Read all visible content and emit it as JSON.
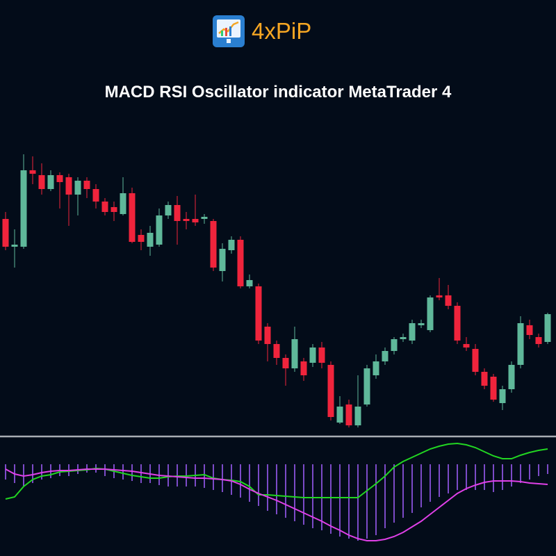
{
  "logo": "4xPiP",
  "title": "MACD RSI Oscillator indicator MetaTrader 4",
  "chart_data": [
    {
      "type": "candlestick",
      "ylim": [
        0,
        410
      ],
      "up_color": "#5fb89a",
      "down_color": "#f0243c",
      "open": [
        305,
        265,
        265,
        375,
        368,
        348,
        368,
        365,
        340,
        360,
        348,
        330,
        322,
        312,
        342,
        282,
        265,
        268,
        310,
        325,
        305,
        305,
        305,
        302,
        230,
        260,
        275,
        208,
        208,
        150,
        125,
        105,
        90,
        100,
        98,
        120,
        95,
        12,
        38,
        8,
        38,
        80,
        100,
        115,
        132,
        130,
        152,
        145,
        195,
        195,
        180,
        125,
        118,
        85,
        78,
        40,
        60,
        95,
        152,
        135,
        128
      ],
      "high": [
        315,
        290,
        398,
        395,
        385,
        375,
        372,
        370,
        365,
        365,
        355,
        335,
        330,
        365,
        350,
        290,
        295,
        320,
        330,
        338,
        315,
        340,
        312,
        305,
        270,
        280,
        280,
        225,
        212,
        155,
        130,
        110,
        150,
        105,
        125,
        128,
        100,
        50,
        45,
        80,
        95,
        110,
        120,
        135,
        140,
        160,
        160,
        195,
        220,
        210,
        185,
        135,
        125,
        90,
        82,
        65,
        100,
        165,
        160,
        140,
        170
      ],
      "low": [
        260,
        235,
        262,
        355,
        340,
        345,
        320,
        295,
        310,
        335,
        320,
        310,
        302,
        310,
        270,
        260,
        252,
        265,
        305,
        268,
        290,
        295,
        298,
        230,
        215,
        255,
        205,
        205,
        125,
        100,
        95,
        65,
        85,
        72,
        92,
        90,
        15,
        10,
        5,
        5,
        35,
        75,
        95,
        110,
        128,
        125,
        148,
        142,
        188,
        175,
        125,
        115,
        80,
        60,
        42,
        30,
        55,
        90,
        132,
        120,
        125
      ],
      "close": [
        265,
        268,
        375,
        370,
        348,
        368,
        358,
        340,
        360,
        348,
        330,
        315,
        315,
        342,
        272,
        272,
        285,
        310,
        325,
        302,
        302,
        300,
        308,
        235,
        262,
        275,
        208,
        217,
        130,
        125,
        105,
        90,
        132,
        80,
        120,
        98,
        20,
        35,
        8,
        35,
        90,
        100,
        115,
        132,
        135,
        155,
        155,
        192,
        192,
        180,
        130,
        120,
        85,
        65,
        45,
        60,
        95,
        155,
        138,
        125,
        168
      ]
    },
    {
      "type": "indicator",
      "ylim": [
        -132,
        28
      ],
      "histogram": {
        "color": "#9b5cf5",
        "values": [
          -22,
          -27,
          -32,
          -27,
          -22,
          -20,
          -17,
          -17,
          -14,
          -12,
          -12,
          -17,
          -20,
          -22,
          -24,
          -27,
          -27,
          -30,
          -32,
          -32,
          -32,
          -32,
          -34,
          -37,
          -40,
          -44,
          -48,
          -54,
          -60,
          -67,
          -72,
          -77,
          -82,
          -87,
          -92,
          -95,
          -100,
          -104,
          -107,
          -110,
          -107,
          -102,
          -92,
          -84,
          -77,
          -70,
          -62,
          -54,
          -47,
          -42,
          -37,
          -37,
          -37,
          -37,
          -40,
          -37,
          -32,
          -27,
          -22,
          -17,
          -14
        ]
      },
      "series": [
        {
          "color": "#22d622",
          "values": [
            -50,
            -47,
            -32,
            -22,
            -17,
            -15,
            -11,
            -10,
            -9,
            -8,
            -6,
            -7,
            -10,
            -13,
            -16,
            -18,
            -20,
            -20,
            -18,
            -17,
            -17,
            -16,
            -15,
            -20,
            -22,
            -23,
            -25,
            -32,
            -44,
            -44,
            -45,
            -46,
            -47,
            -48,
            -48,
            -48,
            -48,
            -48,
            -48,
            -48,
            -38,
            -28,
            -17,
            -4,
            4,
            10,
            16,
            22,
            26,
            29,
            30,
            28,
            24,
            18,
            12,
            8,
            8,
            13,
            17,
            20,
            22
          ]
        },
        {
          "color": "#e040e8",
          "values": [
            -7,
            -14,
            -17,
            -15,
            -12,
            -10,
            -9,
            -9,
            -8,
            -7,
            -7,
            -7,
            -8,
            -9,
            -10,
            -12,
            -14,
            -16,
            -17,
            -18,
            -19,
            -20,
            -20,
            -21,
            -22,
            -24,
            -29,
            -36,
            -42,
            -47,
            -52,
            -58,
            -64,
            -70,
            -76,
            -82,
            -89,
            -95,
            -102,
            -107,
            -110,
            -110,
            -108,
            -104,
            -98,
            -90,
            -82,
            -72,
            -62,
            -52,
            -42,
            -35,
            -30,
            -26,
            -24,
            -24,
            -24,
            -25,
            -27,
            -28,
            -29
          ]
        }
      ]
    }
  ]
}
